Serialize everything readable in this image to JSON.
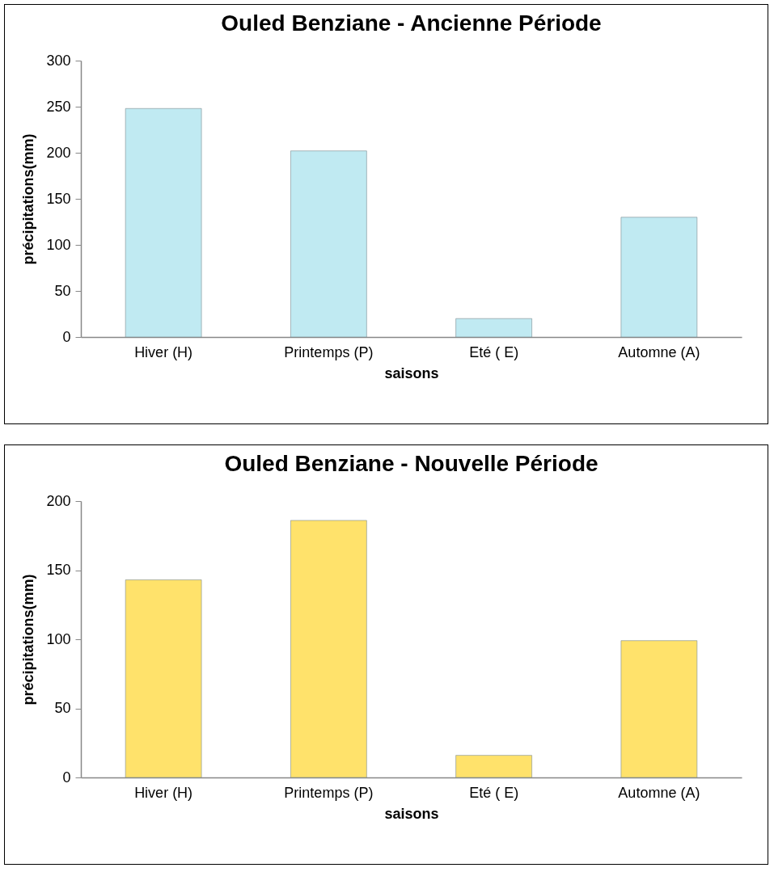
{
  "chart_data": [
    {
      "type": "bar",
      "title": "Ouled Benziane - Ancienne Période",
      "xlabel": "saisons",
      "ylabel": "précipitations(mm)",
      "categories": [
        "Hiver (H)",
        "Printemps (P)",
        "Eté ( E)",
        "Automne (A)"
      ],
      "values": [
        248,
        202,
        20,
        130
      ],
      "color": "#c0eaf2",
      "ylim": [
        0,
        300
      ],
      "yticks": [
        0,
        50,
        100,
        150,
        200,
        250,
        300
      ],
      "grid": false
    },
    {
      "type": "bar",
      "title": "Ouled Benziane - Nouvelle Période",
      "xlabel": "saisons",
      "ylabel": "précipitations(mm)",
      "categories": [
        "Hiver (H)",
        "Printemps (P)",
        "Eté ( E)",
        "Automne (A)"
      ],
      "values": [
        143,
        186,
        16,
        99
      ],
      "color": "#ffe26b",
      "ylim": [
        0,
        200
      ],
      "yticks": [
        0,
        50,
        100,
        150,
        200
      ],
      "grid": false
    }
  ]
}
